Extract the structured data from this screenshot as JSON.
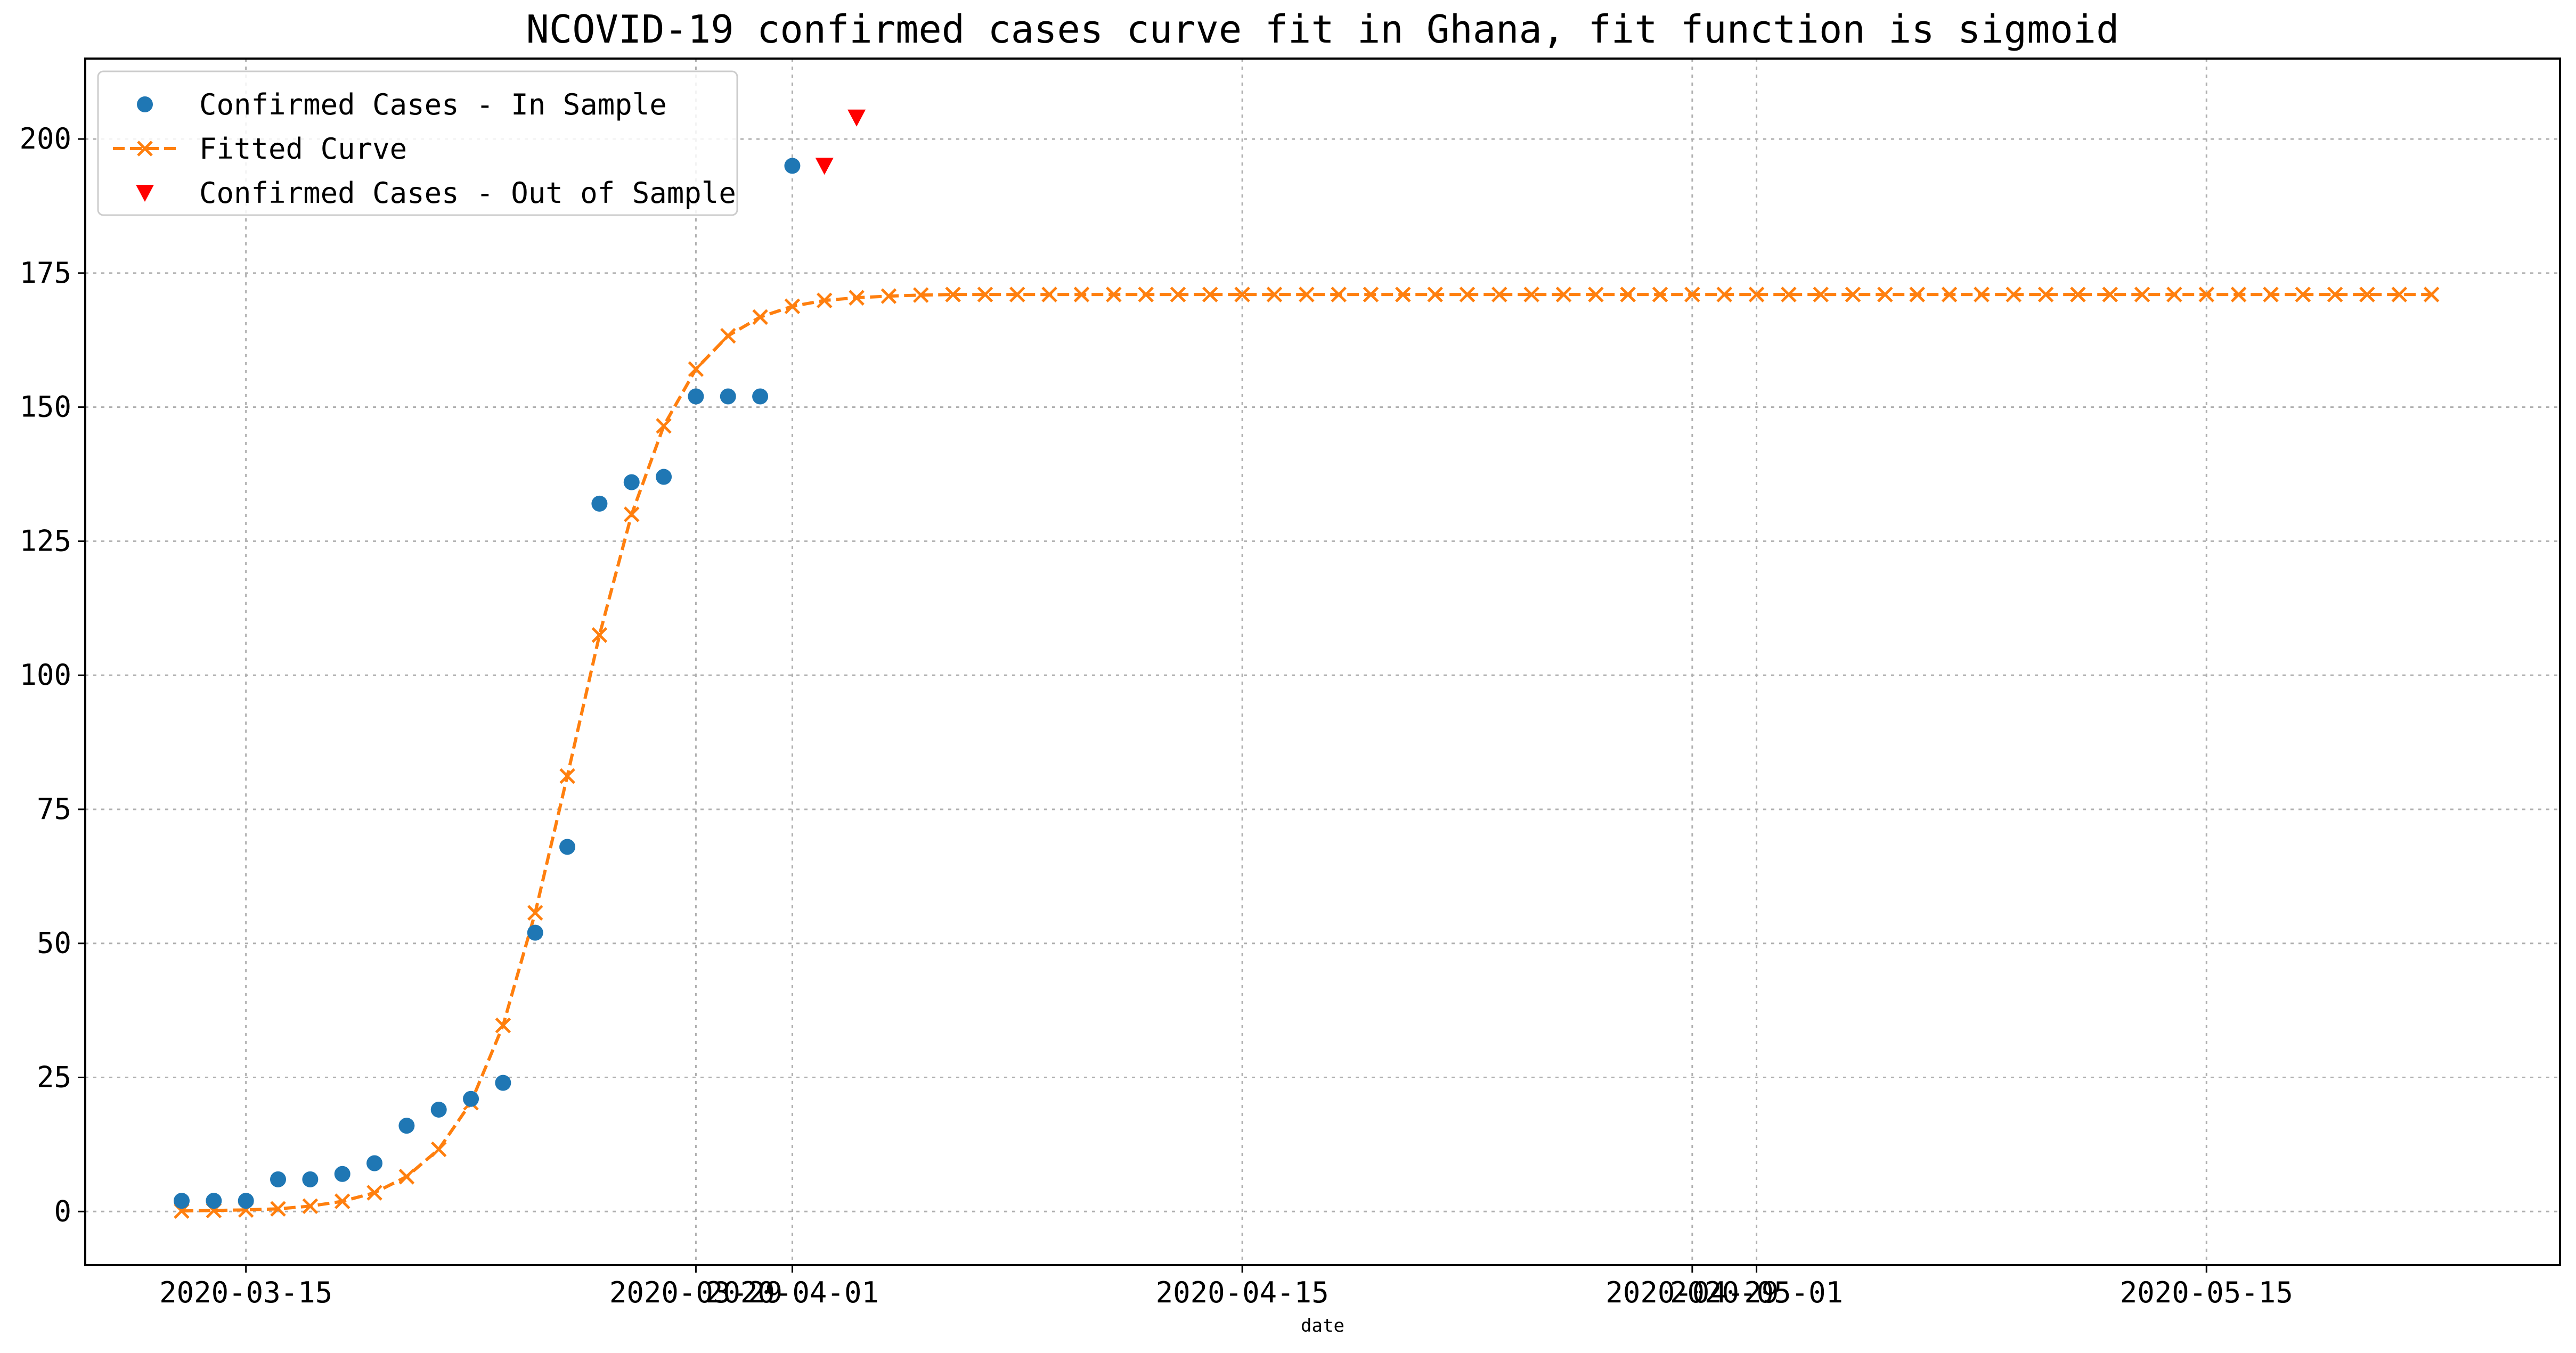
{
  "chart_data": {
    "type": "line",
    "title": "NCOVID-19 confirmed cases curve fit in Ghana, fit function is sigmoid",
    "xlabel": "date",
    "ylabel": "",
    "x_start": "2020-03-13",
    "xlim": [
      "2020-03-10",
      "2020-05-26"
    ],
    "ylim": [
      -10,
      215
    ],
    "x_ticks": [
      "2020-03-15",
      "2020-03-29",
      "2020-04-01",
      "2020-04-15",
      "2020-04-29",
      "2020-05-01",
      "2020-05-15"
    ],
    "x_tick_labels": [
      "2020-03-15",
      "2020-03-29",
      "2020-04-01",
      "2020-04-15",
      "2020-04-29",
      "2020-05-01",
      "2020-05-15"
    ],
    "y_ticks": [
      0,
      25,
      50,
      75,
      100,
      125,
      150,
      175,
      200
    ],
    "y_tick_labels": [
      "0",
      "25",
      "50",
      "75",
      "100",
      "125",
      "150",
      "175",
      "200"
    ],
    "grid": true,
    "legend_position": "top-left",
    "colors": {
      "in_sample": "#1f77b4",
      "fitted": "#ff7f0e",
      "out_sample": "#ff0000",
      "grid": "#b0b0b0"
    },
    "series": [
      {
        "name": "Confirmed Cases - In Sample",
        "marker": "circle",
        "x": [
          "2020-03-13",
          "2020-03-14",
          "2020-03-15",
          "2020-03-16",
          "2020-03-17",
          "2020-03-18",
          "2020-03-19",
          "2020-03-20",
          "2020-03-21",
          "2020-03-22",
          "2020-03-23",
          "2020-03-24",
          "2020-03-25",
          "2020-03-26",
          "2020-03-27",
          "2020-03-28",
          "2020-03-29",
          "2020-03-30",
          "2020-03-31",
          "2020-04-01"
        ],
        "values": [
          2,
          2,
          2,
          6,
          6,
          7,
          9,
          16,
          19,
          21,
          24,
          52,
          68,
          132,
          136,
          137,
          152,
          152,
          152,
          195
        ]
      },
      {
        "name": "Fitted Curve",
        "marker": "x",
        "line": "dashed",
        "x_first": "2020-03-13",
        "x_last": "2020-05-22",
        "values": [
          0.1,
          0.2,
          0.3,
          0.5,
          1.0,
          1.9,
          3.5,
          6.5,
          11.6,
          20.3,
          34.7,
          55.7,
          81.2,
          107.5,
          130.0,
          146.5,
          157.1,
          163.3,
          166.8,
          168.8,
          169.9,
          170.4,
          170.7,
          170.9,
          171.0
        ]
      },
      {
        "name": "Confirmed Cases - Out of Sample",
        "marker": "triangle-down",
        "x": [
          "2020-04-02",
          "2020-04-03"
        ],
        "values": [
          195,
          204
        ]
      }
    ]
  }
}
